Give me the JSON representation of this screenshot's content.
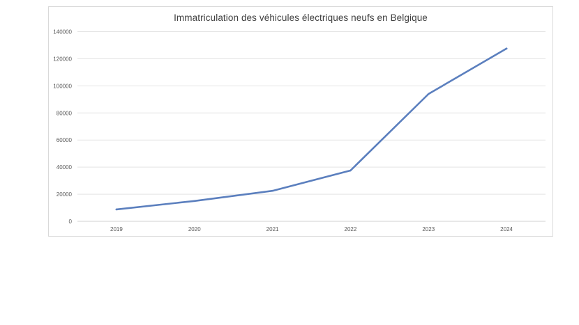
{
  "chart_data": {
    "type": "line",
    "title": "Immatriculation des véhicules électriques neufs en Belgique",
    "xlabel": "",
    "ylabel": "",
    "categories": [
      "2019",
      "2020",
      "2021",
      "2022",
      "2023",
      "2024"
    ],
    "series": [
      {
        "values": [
          8800,
          15000,
          22500,
          37500,
          94000,
          127500
        ],
        "color": "#5b7fbe"
      }
    ],
    "ylim": [
      0,
      140000
    ],
    "yticks": [
      "0",
      "20000",
      "40000",
      "60000",
      "80000",
      "100000",
      "120000",
      "140000"
    ],
    "grid": true,
    "legend": "none"
  }
}
